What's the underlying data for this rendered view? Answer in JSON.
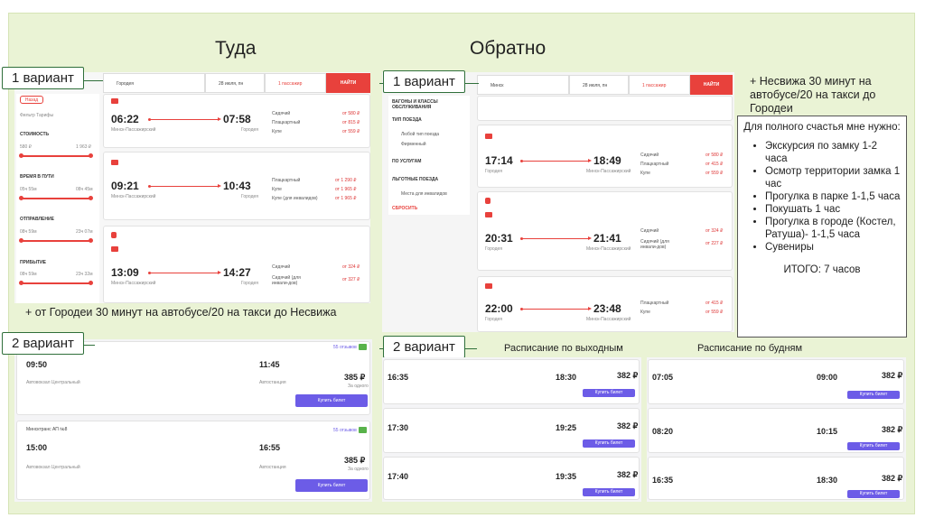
{
  "headings": {
    "there": "Туда",
    "back": "Обратно"
  },
  "tags": {
    "v1_left": "1 вариант",
    "v1_right": "1 вариант",
    "v2_left": "2 вариант",
    "v2_right": "2 вариант"
  },
  "notes": {
    "nesvizh": "+ Несвижа 30 минут на автобусе/20 на такси до Городеи",
    "gorodeya": "+ от Городеи 30 минут на автобусе/20 на такси до Несвижа",
    "weekend": "Расписание по выходным",
    "weekday": "Расписание по будням"
  },
  "infobox": {
    "title": "Для полного счастья мне нужно:",
    "items": [
      "Экскурсия по замку 1-2 часа",
      "Осмотр территории замка 1 час",
      "Прогулка в парке 1-1,5 часа",
      "Покушать 1 час",
      "Прогулка в городе (Костел, Ратуша)- 1-1,5 часа",
      "Сувениры"
    ],
    "total": "ИТОГО: 7 часов"
  },
  "train_there": {
    "search": {
      "from": "Городея",
      "date": "28 июля, пн",
      "passengers": "1 пассажир",
      "button": "НАЙТИ"
    },
    "filters": {
      "back": "Назад",
      "sort": "Фильтр  Тарифы",
      "cost": "СТОИМОСТЬ",
      "cost_min": "580 ₽",
      "cost_max": "1 963 ₽",
      "travel": "ВРЕМЯ В ПУТИ",
      "travel_min": "05ч 55м",
      "travel_max": "08ч 45м",
      "depart": "ОТПРАВЛЕНИЕ",
      "depart_min": "08ч 59м",
      "depart_max": "23ч 07м",
      "arrive": "ПРИБЫТИЕ",
      "arrive_min": "08ч 59м",
      "arrive_max": "23ч 32м"
    },
    "trips": [
      {
        "dep": "06:22",
        "arr": "07:58",
        "from": "Минск-Пассажирский",
        "to": "Городея",
        "seats": [
          "Сидячий",
          "Плацкартный",
          "Купе"
        ],
        "prices": [
          "от 580 ₽",
          "от 815 ₽",
          "от 559 ₽"
        ]
      },
      {
        "dep": "09:21",
        "arr": "10:43",
        "from": "Минск-Пассажирский",
        "to": "Городея",
        "seats": [
          "Плацкартный",
          "Купе",
          "Купе (для инвалидов)"
        ],
        "prices": [
          "от 1 290 ₽",
          "от 1 965 ₽",
          "от 1 965 ₽"
        ]
      },
      {
        "dep": "13:09",
        "arr": "14:27",
        "from": "Минск-Пассажирский",
        "to": "Городея",
        "seats": [
          "Сидячий",
          "Сидячий (для инвали-дов)"
        ],
        "prices": [
          "от 324 ₽",
          "от 327 ₽"
        ]
      }
    ]
  },
  "train_back": {
    "search": {
      "from": "Минск",
      "date": "28 июля, пн",
      "passengers": "1 пассажир",
      "button": "НАЙТИ"
    },
    "filters": [
      "ВАГОНЫ И КЛАССЫ ОБСЛУЖИВАНИЯ",
      "ТИП ПОЕЗДА",
      "Любой тип поезда",
      "Фирменный",
      "ПО УСЛУГАМ",
      "ЛЬГОТНЫЕ ПОЕЗДА",
      "Места для инвалидов",
      "СБРОСИТЬ"
    ],
    "trips": [
      {
        "dep": "17:14",
        "arr": "18:49",
        "from": "Городея",
        "to": "Минск-Пассажирский",
        "seats": [
          "Сидячий",
          "Плацкартный",
          "Купе"
        ],
        "prices": [
          "от 580 ₽",
          "от 415 ₽",
          "от 559 ₽"
        ]
      },
      {
        "dep": "20:31",
        "arr": "21:41",
        "from": "Городея",
        "to": "Минск-Пассажирский",
        "seats": [
          "Сидячий",
          "Сидячий (для инвали-дов)"
        ],
        "prices": [
          "от 324 ₽",
          "от 227 ₽"
        ]
      },
      {
        "dep": "22:00",
        "arr": "23:48",
        "from": "Городея",
        "to": "Минск-Пассажирский",
        "seats": [
          "Плацкартный",
          "Купе"
        ],
        "prices": [
          "от 415 ₽",
          "от 559 ₽"
        ]
      }
    ]
  },
  "bus_there": [
    {
      "dep": "09:50",
      "arr": "11:45",
      "from": "Автовокзал Центральный",
      "to": "Автостанция",
      "price": "385 ₽",
      "sub": "За одного",
      "buy": "Купить билет",
      "badge": "55 отзывов"
    },
    {
      "dep": "15:00",
      "arr": "16:55",
      "from": "Автовокзал Центральный",
      "to": "Автостанция",
      "price": "385 ₽",
      "sub": "За одного",
      "buy": "Купить билет",
      "badge": "55 отзывов",
      "carrier": "Минсктранс АП №8"
    }
  ],
  "bus_weekend": [
    {
      "dep": "16:35",
      "arr": "18:30",
      "price": "382 ₽",
      "buy": "Купить билет"
    },
    {
      "dep": "17:30",
      "arr": "19:25",
      "price": "382 ₽",
      "buy": "Купить билет"
    },
    {
      "dep": "17:40",
      "arr": "19:35",
      "price": "382 ₽",
      "buy": "Купить билет"
    }
  ],
  "bus_weekday": [
    {
      "dep": "07:05",
      "arr": "09:00",
      "price": "382 ₽",
      "buy": "Купить билет"
    },
    {
      "dep": "08:20",
      "arr": "10:15",
      "price": "382 ₽",
      "buy": "Купить билет"
    },
    {
      "dep": "16:35",
      "arr": "18:30",
      "price": "382 ₽",
      "buy": "Купить билет"
    }
  ],
  "colors": {
    "accent_red": "#e8413c",
    "buy_purple": "#6c5ce7",
    "slide_bg": "#eaf3d5",
    "badge_green": "#58b24a"
  }
}
